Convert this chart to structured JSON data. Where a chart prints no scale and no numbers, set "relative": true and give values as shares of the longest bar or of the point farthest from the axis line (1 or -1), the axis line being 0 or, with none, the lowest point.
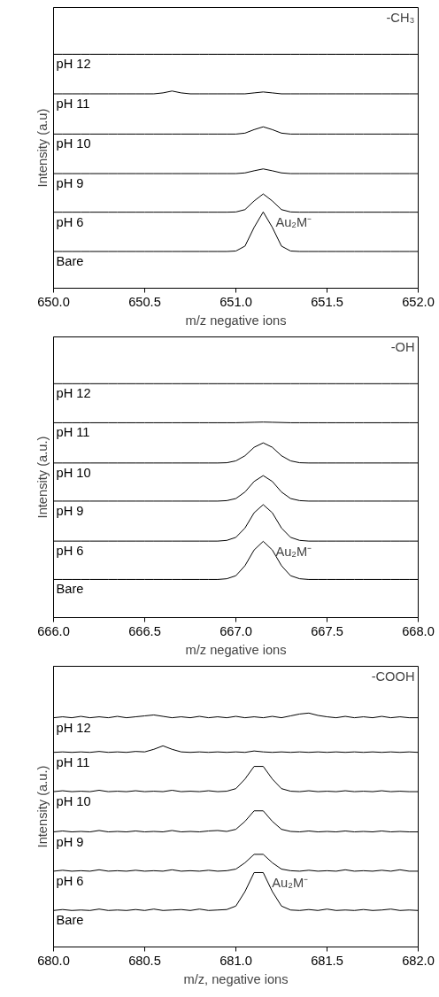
{
  "chart_data": [
    {
      "type": "line",
      "relative": true,
      "xlabel": "m/z negative ions",
      "ylabel": "Intensity (a.u)",
      "tick_labels": "x",
      "grid": false,
      "legend": false,
      "marker": "none",
      "line_style": "solid",
      "xlim": [
        650.0,
        652.0
      ],
      "xticks": [
        {
          "value": 650.0,
          "label": "650.0"
        },
        {
          "value": 650.5,
          "label": "650.5"
        },
        {
          "value": 651.0,
          "label": "651.0"
        },
        {
          "value": 651.5,
          "label": "651.5"
        },
        {
          "value": 652.0,
          "label": "652.0"
        }
      ],
      "x": [
        650.0,
        650.05,
        650.1,
        650.15,
        650.2,
        650.25,
        650.3,
        650.35,
        650.4,
        650.45,
        650.5,
        650.55,
        650.6,
        650.65,
        650.7,
        650.75,
        650.8,
        650.85,
        650.9,
        650.95,
        651.0,
        651.05,
        651.1,
        651.15,
        651.2,
        651.25,
        651.3,
        651.35,
        651.4,
        651.45,
        651.5,
        651.55,
        651.6,
        651.65,
        651.7,
        651.75,
        651.8,
        651.85,
        651.9,
        651.95,
        652.0
      ],
      "annotations": [
        "-CH₃",
        {
          "text": "Au₂M⁻",
          "x": 651.15,
          "y": 0.326
        }
      ],
      "series": [
        {
          "name": "Bare",
          "color": "#000000",
          "values": [
            0.157,
            0.157,
            0.157,
            0.157,
            0.157,
            0.157,
            0.157,
            0.157,
            0.157,
            0.157,
            0.157,
            0.157,
            0.157,
            0.157,
            0.157,
            0.157,
            0.157,
            0.157,
            0.157,
            0.157,
            0.159,
            0.18,
            0.26,
            0.326,
            0.26,
            0.18,
            0.159,
            0.157,
            0.157,
            0.157,
            0.157,
            0.157,
            0.157,
            0.157,
            0.157,
            0.157,
            0.157,
            0.157,
            0.157,
            0.157,
            0.157
          ]
        },
        {
          "name": "pH 6",
          "color": "#000000",
          "values": [
            0.325,
            0.325,
            0.325,
            0.325,
            0.325,
            0.325,
            0.325,
            0.325,
            0.325,
            0.325,
            0.325,
            0.325,
            0.325,
            0.325,
            0.325,
            0.325,
            0.325,
            0.325,
            0.325,
            0.325,
            0.326,
            0.336,
            0.373,
            0.403,
            0.373,
            0.336,
            0.326,
            0.325,
            0.325,
            0.325,
            0.325,
            0.325,
            0.325,
            0.325,
            0.325,
            0.325,
            0.325,
            0.325,
            0.325,
            0.325,
            0.325
          ]
        },
        {
          "name": "pH 9",
          "color": "#000000",
          "values": [
            0.49,
            0.49,
            0.49,
            0.49,
            0.49,
            0.49,
            0.49,
            0.49,
            0.49,
            0.49,
            0.49,
            0.49,
            0.49,
            0.49,
            0.49,
            0.49,
            0.49,
            0.49,
            0.49,
            0.49,
            0.49,
            0.493,
            0.502,
            0.51,
            0.502,
            0.493,
            0.49,
            0.49,
            0.49,
            0.49,
            0.49,
            0.49,
            0.49,
            0.49,
            0.49,
            0.49,
            0.49,
            0.49,
            0.49,
            0.49,
            0.49
          ]
        },
        {
          "name": "pH 10",
          "color": "#000000",
          "values": [
            0.659,
            0.659,
            0.659,
            0.659,
            0.659,
            0.659,
            0.659,
            0.659,
            0.659,
            0.659,
            0.659,
            0.659,
            0.659,
            0.659,
            0.659,
            0.659,
            0.659,
            0.659,
            0.659,
            0.659,
            0.659,
            0.663,
            0.678,
            0.69,
            0.678,
            0.663,
            0.659,
            0.659,
            0.659,
            0.659,
            0.659,
            0.659,
            0.659,
            0.659,
            0.659,
            0.659,
            0.659,
            0.659,
            0.659,
            0.659,
            0.659
          ]
        },
        {
          "name": "pH 11",
          "color": "#000000",
          "values": [
            0.831,
            0.831,
            0.831,
            0.831,
            0.831,
            0.831,
            0.831,
            0.831,
            0.831,
            0.831,
            0.831,
            0.831,
            0.835,
            0.843,
            0.835,
            0.831,
            0.831,
            0.831,
            0.831,
            0.831,
            0.831,
            0.831,
            0.835,
            0.839,
            0.835,
            0.831,
            0.831,
            0.831,
            0.831,
            0.831,
            0.831,
            0.831,
            0.831,
            0.831,
            0.831,
            0.831,
            0.831,
            0.831,
            0.831,
            0.831,
            0.831
          ]
        },
        {
          "name": "pH 12",
          "color": "#000000",
          "values": [
            1.0,
            1.0,
            1.0,
            1.0,
            1.0,
            1.0,
            1.0,
            1.0,
            1.0,
            1.0,
            1.0,
            1.0,
            1.0,
            1.0,
            1.0,
            1.0,
            1.0,
            1.0,
            1.0,
            1.0,
            1.0,
            1.0,
            1.0,
            1.0,
            1.0,
            1.0,
            1.0,
            1.0,
            1.0,
            1.0,
            1.0,
            1.0,
            1.0,
            1.0,
            1.0,
            1.0,
            1.0,
            1.0,
            1.0,
            1.0,
            1.0
          ]
        }
      ]
    },
    {
      "type": "line",
      "relative": true,
      "xlabel": "m/z negative ions",
      "ylabel": "Intensity (a.u.)",
      "tick_labels": "x",
      "grid": false,
      "legend": false,
      "marker": "none",
      "line_style": "solid",
      "xlim": [
        666.0,
        668.0
      ],
      "xticks": [
        {
          "value": 666.0,
          "label": "666.0"
        },
        {
          "value": 666.5,
          "label": "666.5"
        },
        {
          "value": 667.0,
          "label": "667.0"
        },
        {
          "value": 667.5,
          "label": "667.5"
        },
        {
          "value": 668.0,
          "label": "668.0"
        }
      ],
      "x": [
        666.0,
        666.05,
        666.1,
        666.15,
        666.2,
        666.25,
        666.3,
        666.35,
        666.4,
        666.45,
        666.5,
        666.55,
        666.6,
        666.65,
        666.7,
        666.75,
        666.8,
        666.85,
        666.9,
        666.95,
        667.0,
        667.05,
        667.1,
        667.15,
        667.2,
        667.25,
        667.3,
        667.35,
        667.4,
        667.45,
        667.5,
        667.55,
        667.6,
        667.65,
        667.7,
        667.75,
        667.8,
        667.85,
        667.9,
        667.95,
        668.0
      ],
      "annotations": [
        "-OH",
        {
          "text": "Au₂M⁻",
          "x": 667.15,
          "y": 0.326
        }
      ],
      "series": [
        {
          "name": "Bare",
          "color": "#000000",
          "values": [
            0.163,
            0.163,
            0.163,
            0.163,
            0.163,
            0.163,
            0.163,
            0.163,
            0.163,
            0.163,
            0.163,
            0.163,
            0.163,
            0.163,
            0.163,
            0.163,
            0.163,
            0.163,
            0.163,
            0.166,
            0.179,
            0.222,
            0.289,
            0.326,
            0.289,
            0.222,
            0.179,
            0.166,
            0.163,
            0.163,
            0.163,
            0.163,
            0.163,
            0.163,
            0.163,
            0.163,
            0.163,
            0.163,
            0.163,
            0.163,
            0.163
          ]
        },
        {
          "name": "pH 6",
          "color": "#000000",
          "values": [
            0.327,
            0.327,
            0.327,
            0.327,
            0.327,
            0.327,
            0.327,
            0.327,
            0.327,
            0.327,
            0.327,
            0.327,
            0.327,
            0.327,
            0.327,
            0.327,
            0.327,
            0.327,
            0.327,
            0.33,
            0.343,
            0.383,
            0.448,
            0.483,
            0.448,
            0.383,
            0.343,
            0.33,
            0.327,
            0.327,
            0.327,
            0.327,
            0.327,
            0.327,
            0.327,
            0.327,
            0.327,
            0.327,
            0.327,
            0.327,
            0.327
          ]
        },
        {
          "name": "pH 9",
          "color": "#000000",
          "values": [
            0.498,
            0.498,
            0.498,
            0.498,
            0.498,
            0.498,
            0.498,
            0.498,
            0.498,
            0.498,
            0.498,
            0.498,
            0.498,
            0.498,
            0.498,
            0.498,
            0.498,
            0.498,
            0.498,
            0.5,
            0.509,
            0.537,
            0.582,
            0.607,
            0.582,
            0.537,
            0.509,
            0.5,
            0.498,
            0.498,
            0.498,
            0.498,
            0.498,
            0.498,
            0.498,
            0.498,
            0.498,
            0.498,
            0.498,
            0.498,
            0.498
          ]
        },
        {
          "name": "pH 10",
          "color": "#000000",
          "values": [
            0.661,
            0.661,
            0.661,
            0.661,
            0.661,
            0.661,
            0.661,
            0.661,
            0.661,
            0.661,
            0.661,
            0.661,
            0.661,
            0.661,
            0.661,
            0.661,
            0.661,
            0.661,
            0.661,
            0.662,
            0.67,
            0.692,
            0.728,
            0.747,
            0.728,
            0.692,
            0.67,
            0.662,
            0.661,
            0.661,
            0.661,
            0.661,
            0.661,
            0.661,
            0.661,
            0.661,
            0.661,
            0.661,
            0.661,
            0.661,
            0.661
          ]
        },
        {
          "name": "pH 11",
          "color": "#000000",
          "values": [
            0.833,
            0.833,
            0.833,
            0.833,
            0.833,
            0.833,
            0.833,
            0.833,
            0.833,
            0.833,
            0.833,
            0.833,
            0.833,
            0.833,
            0.833,
            0.833,
            0.833,
            0.833,
            0.833,
            0.833,
            0.833,
            0.834,
            0.835,
            0.836,
            0.835,
            0.834,
            0.833,
            0.833,
            0.833,
            0.833,
            0.833,
            0.833,
            0.833,
            0.833,
            0.833,
            0.833,
            0.833,
            0.833,
            0.833,
            0.833,
            0.833
          ]
        },
        {
          "name": "pH 12",
          "color": "#000000",
          "values": [
            1.0,
            1.0,
            1.0,
            1.0,
            1.0,
            1.0,
            1.0,
            1.0,
            1.0,
            1.0,
            1.0,
            1.0,
            1.0,
            1.0,
            1.0,
            1.0,
            1.0,
            1.0,
            1.0,
            1.0,
            1.0,
            1.0,
            1.0,
            1.0,
            1.0,
            1.0,
            1.0,
            1.0,
            1.0,
            1.0,
            1.0,
            1.0,
            1.0,
            1.0,
            1.0,
            1.0,
            1.0,
            1.0,
            1.0,
            1.0,
            1.0
          ]
        }
      ]
    },
    {
      "type": "line",
      "relative": true,
      "xlabel": "m/z, negative ions",
      "ylabel": "Intensity (a.u.)",
      "tick_labels": "x",
      "grid": false,
      "legend": false,
      "marker": "none",
      "line_style": "solid",
      "xlim": [
        680.0,
        682.0
      ],
      "xticks": [
        {
          "value": 680.0,
          "label": "680.0"
        },
        {
          "value": 680.5,
          "label": "680.5"
        },
        {
          "value": 681.0,
          "label": "681.0"
        },
        {
          "value": 681.5,
          "label": "681.5"
        },
        {
          "value": 682.0,
          "label": "682.0"
        }
      ],
      "x": [
        680.0,
        680.05,
        680.1,
        680.15,
        680.2,
        680.25,
        680.3,
        680.35,
        680.4,
        680.45,
        680.5,
        680.55,
        680.6,
        680.65,
        680.7,
        680.75,
        680.8,
        680.85,
        680.9,
        680.95,
        681.0,
        681.05,
        681.1,
        681.15,
        681.2,
        681.25,
        681.3,
        681.35,
        681.4,
        681.45,
        681.5,
        681.55,
        681.6,
        681.65,
        681.7,
        681.75,
        681.8,
        681.85,
        681.9,
        681.95,
        682.0
      ],
      "annotations": [
        "-COOH",
        {
          "text": "Au₂M⁻",
          "x": 681.13,
          "y": 0.318
        }
      ],
      "series": [
        {
          "name": "Bare",
          "color": "#000000",
          "values": [
            0.156,
            0.16,
            0.156,
            0.158,
            0.156,
            0.162,
            0.156,
            0.158,
            0.156,
            0.16,
            0.156,
            0.162,
            0.156,
            0.158,
            0.16,
            0.156,
            0.162,
            0.156,
            0.158,
            0.16,
            0.175,
            0.237,
            0.318,
            0.318,
            0.237,
            0.175,
            0.158,
            0.156,
            0.16,
            0.156,
            0.162,
            0.156,
            0.158,
            0.156,
            0.16,
            0.156,
            0.158,
            0.162,
            0.156,
            0.158,
            0.156
          ]
        },
        {
          "name": "pH 6",
          "color": "#000000",
          "values": [
            0.324,
            0.328,
            0.324,
            0.326,
            0.324,
            0.33,
            0.324,
            0.326,
            0.324,
            0.328,
            0.324,
            0.326,
            0.324,
            0.33,
            0.324,
            0.326,
            0.324,
            0.328,
            0.324,
            0.326,
            0.333,
            0.36,
            0.396,
            0.396,
            0.36,
            0.333,
            0.326,
            0.324,
            0.328,
            0.324,
            0.326,
            0.324,
            0.33,
            0.324,
            0.326,
            0.324,
            0.328,
            0.324,
            0.33,
            0.324,
            0.324
          ]
        },
        {
          "name": "pH 9",
          "color": "#000000",
          "values": [
            0.492,
            0.496,
            0.492,
            0.494,
            0.492,
            0.498,
            0.492,
            0.494,
            0.492,
            0.496,
            0.492,
            0.494,
            0.492,
            0.498,
            0.492,
            0.494,
            0.492,
            0.496,
            0.498,
            0.494,
            0.503,
            0.537,
            0.582,
            0.582,
            0.537,
            0.503,
            0.494,
            0.492,
            0.496,
            0.492,
            0.494,
            0.492,
            0.496,
            0.492,
            0.494,
            0.492,
            0.496,
            0.492,
            0.494,
            0.492,
            0.492
          ]
        },
        {
          "name": "pH 10",
          "color": "#000000",
          "values": [
            0.664,
            0.668,
            0.664,
            0.666,
            0.664,
            0.67,
            0.664,
            0.666,
            0.664,
            0.668,
            0.664,
            0.666,
            0.664,
            0.67,
            0.664,
            0.666,
            0.664,
            0.668,
            0.664,
            0.666,
            0.677,
            0.718,
            0.772,
            0.772,
            0.718,
            0.677,
            0.666,
            0.664,
            0.668,
            0.664,
            0.666,
            0.664,
            0.668,
            0.664,
            0.666,
            0.664,
            0.668,
            0.664,
            0.666,
            0.664,
            0.664
          ]
        },
        {
          "name": "pH 11",
          "color": "#000000",
          "values": [
            0.832,
            0.834,
            0.832,
            0.834,
            0.832,
            0.836,
            0.832,
            0.834,
            0.832,
            0.836,
            0.834,
            0.845,
            0.86,
            0.845,
            0.834,
            0.832,
            0.834,
            0.832,
            0.834,
            0.832,
            0.834,
            0.832,
            0.838,
            0.834,
            0.832,
            0.834,
            0.832,
            0.834,
            0.832,
            0.834,
            0.832,
            0.834,
            0.832,
            0.834,
            0.832,
            0.834,
            0.832,
            0.834,
            0.832,
            0.834,
            0.832
          ]
        },
        {
          "name": "pH 12",
          "color": "#000000",
          "values": [
            0.98,
            0.984,
            0.98,
            0.986,
            0.98,
            0.984,
            0.98,
            0.986,
            0.98,
            0.984,
            0.988,
            0.992,
            0.986,
            0.98,
            0.984,
            0.98,
            0.986,
            0.98,
            0.984,
            0.98,
            0.986,
            0.98,
            0.984,
            0.98,
            0.986,
            0.98,
            0.988,
            0.996,
            1.0,
            0.99,
            0.984,
            0.98,
            0.986,
            0.98,
            0.984,
            0.98,
            0.986,
            0.98,
            0.984,
            0.98,
            0.98
          ]
        }
      ]
    }
  ]
}
